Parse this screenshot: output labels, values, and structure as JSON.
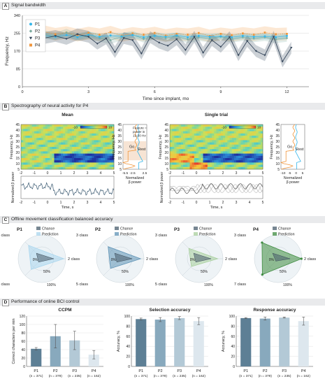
{
  "panels": {
    "A": {
      "letter": "A",
      "title": "Signal bandwidth"
    },
    "B": {
      "letter": "B",
      "title": "Spectrography of neural activity for P4"
    },
    "C": {
      "letter": "C",
      "title": "Offline movement classification balanced accuracy"
    },
    "D": {
      "letter": "D",
      "title": "Performance of online BCI control"
    }
  },
  "colors": {
    "P1": "#35b6e9",
    "P2": "#7cab9f",
    "P3": "#35465b",
    "P4": "#f0963c",
    "radar_P1": "#a9d6ee",
    "radar_P2": "#5f93b6",
    "radar_P3": "#a8cf9c",
    "radar_P4": "#3f8c40",
    "bar_P1": "#5d7f95",
    "bar_P2": "#88a9bd",
    "bar_P3": "#b3c9d6",
    "bar_P4": "#dde7ee"
  },
  "chart_data": [
    {
      "id": "A",
      "type": "line",
      "xlabel": "Time since implant, mo",
      "ylabel": "Frequency, Hz",
      "xlim": [
        0,
        13
      ],
      "ylim": [
        0,
        340
      ],
      "xticks": [
        0,
        3,
        6,
        9,
        12
      ],
      "yticks": [
        0,
        85,
        170,
        255,
        340
      ],
      "legend": "top-left",
      "series": [
        {
          "name": "P1",
          "x": [
            0.5,
            1.0,
            1.5,
            2.0,
            2.5,
            3.0,
            3.5,
            4.0,
            4.5,
            5.0,
            5.5,
            6.0,
            6.5,
            7.0,
            7.5,
            8.0,
            8.5,
            9.0,
            9.5,
            10.0,
            10.5,
            11.0,
            11.5,
            12.0
          ],
          "y": [
            228,
            244,
            238,
            246,
            236,
            248,
            238,
            244,
            240,
            246,
            236,
            242,
            238,
            244,
            236,
            242,
            238,
            240,
            236,
            242,
            238,
            240,
            236,
            242
          ]
        },
        {
          "name": "P2",
          "x": [
            0.5,
            1.0,
            1.5,
            2.0,
            2.5,
            3.0,
            3.5,
            4.0,
            4.5,
            5.0,
            5.5,
            6.0,
            6.5,
            7.0,
            7.5,
            8.0,
            8.5,
            9.0,
            9.5,
            10.0,
            10.5,
            11.0,
            11.5,
            12.0
          ],
          "y": [
            232,
            250,
            240,
            258,
            236,
            246,
            232,
            222,
            238,
            248,
            228,
            244,
            232,
            240,
            226,
            236,
            230,
            238,
            228,
            236,
            230,
            236,
            226,
            232
          ]
        },
        {
          "name": "P3",
          "x": [
            0.5,
            1.0,
            1.5,
            2.0,
            2.5,
            3.0,
            3.4,
            3.8,
            4.2,
            4.6,
            5.0,
            5.4,
            5.8,
            6.2,
            6.6,
            7.0,
            7.4,
            7.8,
            8.2,
            8.6,
            9.0,
            9.4,
            9.8,
            10.2,
            10.6,
            11.0,
            11.4,
            11.8,
            12.2
          ],
          "y": [
            222,
            232,
            242,
            228,
            250,
            238,
            205,
            230,
            165,
            232,
            222,
            158,
            236,
            210,
            195,
            226,
            175,
            238,
            162,
            222,
            190,
            236,
            150,
            218,
            170,
            150,
            238,
            120,
            186
          ]
        },
        {
          "name": "P4",
          "x": [
            0.5,
            1.0,
            1.5,
            2.0,
            2.5,
            3.0,
            3.5,
            4.0,
            4.5,
            5.0,
            5.5,
            6.0,
            6.5,
            7.0,
            7.5,
            8.0,
            8.5,
            9.0,
            9.5,
            10.0,
            10.5,
            11.0,
            11.5,
            12.0
          ],
          "y": [
            248,
            262,
            250,
            258,
            246,
            256,
            248,
            260,
            244,
            254,
            248,
            256,
            244,
            252,
            248,
            256,
            242,
            252,
            246,
            254,
            248,
            258,
            250,
            252
          ]
        }
      ]
    },
    {
      "id": "B-mean",
      "type": "heatmap",
      "title": "Mean",
      "xlabel": "Time, s",
      "ylabel": "Frequency, Hz",
      "xlim": [
        -2,
        5
      ],
      "ylim": [
        5,
        45
      ],
      "xticks": [
        -2,
        -1,
        0,
        1,
        2,
        3,
        4,
        5
      ],
      "yticks": [
        5,
        10,
        15,
        20,
        25,
        30,
        35,
        40,
        45
      ],
      "colorbar": [
        -10,
        10
      ],
      "trace_ylabel": "Normalized β power",
      "side": {
        "xlabel": "Normalized β power",
        "xticks": [
          -5.5,
          -2.5,
          2.5
        ],
        "ylim": [
          5,
          45
        ],
        "annotation": "Feature = power in 13-30 Hz",
        "labels": [
          "Go",
          "Rest"
        ]
      }
    },
    {
      "id": "B-single",
      "type": "heatmap",
      "title": "Single trial",
      "xlabel": "Time, s",
      "ylabel": "Frequency, Hz",
      "xlim": [
        -2,
        5
      ],
      "ylim": [
        5,
        45
      ],
      "xticks": [
        -2,
        -1,
        0,
        1,
        2,
        3,
        4,
        5
      ],
      "yticks": [
        5,
        10,
        15,
        20,
        25,
        30,
        35,
        40,
        45
      ],
      "colorbar": [
        -10,
        10
      ],
      "trace_ylabel": "Normalized β power",
      "side": {
        "xlabel": "Normalized β power",
        "xticks": [
          -10,
          -5,
          0,
          5
        ],
        "ylim": [
          5,
          45
        ],
        "labels": [
          "Go",
          "Rest"
        ]
      }
    },
    {
      "id": "C",
      "type": "radar",
      "rings": [
        "0%",
        "50%",
        "100%"
      ],
      "legend": [
        "Chance",
        "Prediction"
      ],
      "participants": [
        {
          "name": "P1",
          "axes": [
            "2 class",
            "3 class",
            "5 class"
          ],
          "chance": [
            0.5,
            0.33,
            0.2
          ],
          "prediction": [
            0.92,
            0.8,
            0.64
          ]
        },
        {
          "name": "P2",
          "axes": [
            "2 class",
            "3 class",
            "5 class"
          ],
          "chance": [
            0.5,
            0.33,
            0.2
          ],
          "prediction": [
            0.86,
            0.72,
            0.58
          ]
        },
        {
          "name": "P3",
          "axes": [
            "2 class",
            "3 class",
            "5 class"
          ],
          "chance": [
            0.5,
            0.33,
            0.2
          ],
          "prediction": [
            0.78,
            0.62,
            0.46
          ]
        },
        {
          "name": "P4",
          "axes": [
            "2 class",
            "3 class",
            "7 class"
          ],
          "chance": [
            0.5,
            0.33,
            0.14
          ],
          "prediction": [
            0.98,
            0.96,
            0.94
          ]
        }
      ]
    },
    {
      "id": "D-ccpm",
      "type": "bar",
      "title": "CCPM",
      "ylabel": "Correct characters per min",
      "categories": [
        "P1",
        "P2",
        "P3",
        "P4"
      ],
      "sublabels": [
        "(n = 371)",
        "(n = 379)",
        "(n = 235)",
        "(n = 162)"
      ],
      "values": [
        42,
        72,
        62,
        28
      ],
      "errors": [
        3,
        28,
        22,
        10
      ],
      "ylim": [
        0,
        120
      ],
      "yticks": [
        0,
        20,
        40,
        60,
        80,
        100,
        120
      ]
    },
    {
      "id": "D-selection",
      "type": "bar",
      "title": "Selection accuracy",
      "ylabel": "Accuracy, %",
      "categories": [
        "P1",
        "P2",
        "P3",
        "P4"
      ],
      "sublabels": [
        "(n = 371)",
        "(n = 379)",
        "(n = 235)",
        "(n = 162)"
      ],
      "values": [
        94,
        93,
        96,
        90
      ],
      "errors": [
        2,
        4,
        3,
        7
      ],
      "ylim": [
        0,
        100
      ],
      "yticks": [
        0,
        20,
        40,
        60,
        80,
        100
      ]
    },
    {
      "id": "D-response",
      "type": "bar",
      "title": "Response accuracy",
      "ylabel": "Accuracy, %",
      "categories": [
        "P1",
        "P2",
        "P3",
        "P4"
      ],
      "sublabels": [
        "(n = 371)",
        "(n = 379)",
        "(n = 235)",
        "(n = 162)"
      ],
      "values": [
        96,
        95,
        97,
        90
      ],
      "errors": [
        1,
        3,
        1,
        8
      ],
      "ylim": [
        0,
        100
      ],
      "yticks": [
        0,
        20,
        40,
        60,
        80,
        100
      ]
    }
  ]
}
